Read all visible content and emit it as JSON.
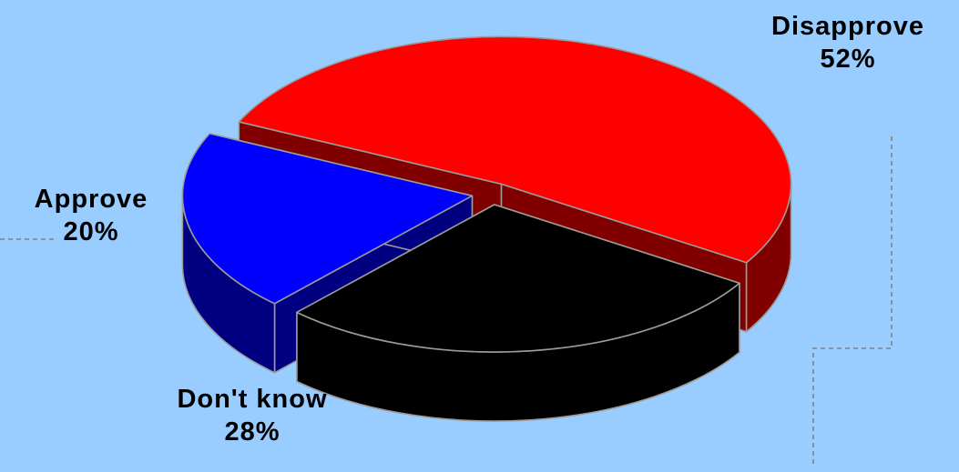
{
  "colors": {
    "background": "#99ccff",
    "disapprove": "#ff0000",
    "disapprove_dark": "#800000",
    "approve": "#0000ff",
    "approve_dark": "#000080",
    "dont_know": "#000000"
  },
  "chart_data": {
    "type": "pie",
    "three_d": true,
    "exploded": true,
    "legend": "none",
    "slices": [
      {
        "name": "Disapprove",
        "value": 52,
        "value_label": "52%",
        "color": "#ff0000"
      },
      {
        "name": "Don't know",
        "value": 28,
        "value_label": "28%",
        "color": "#000000"
      },
      {
        "name": "Approve",
        "value": 20,
        "value_label": "20%",
        "color": "#0000ff"
      }
    ]
  }
}
